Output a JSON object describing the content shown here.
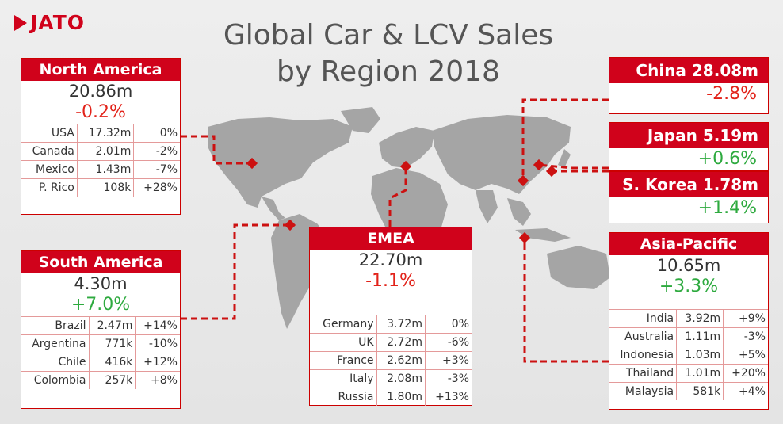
{
  "brand": {
    "name": "JATO",
    "color": "#d0021b"
  },
  "title": {
    "line1": "Global Car & LCV Sales",
    "line2": "by Region 2018"
  },
  "colors": {
    "accent": "#d0021b",
    "positive": "#2eaa3f",
    "negative": "#e2231a",
    "map": "#a5a5a5"
  },
  "north_america": {
    "name": "North America",
    "total": "20.86m",
    "change": "-0.2%",
    "rows": [
      {
        "country": "USA",
        "sales": "17.32m",
        "change": "0%"
      },
      {
        "country": "Canada",
        "sales": "2.01m",
        "change": "-2%"
      },
      {
        "country": "Mexico",
        "sales": "1.43m",
        "change": "-7%"
      },
      {
        "country": "P. Rico",
        "sales": "108k",
        "change": "+28%"
      }
    ]
  },
  "south_america": {
    "name": "South America",
    "total": "4.30m",
    "change": "+7.0%",
    "rows": [
      {
        "country": "Brazil",
        "sales": "2.47m",
        "change": "+14%"
      },
      {
        "country": "Argentina",
        "sales": "771k",
        "change": "-10%"
      },
      {
        "country": "Chile",
        "sales": "416k",
        "change": "+12%"
      },
      {
        "country": "Colombia",
        "sales": "257k",
        "change": "+8%"
      }
    ]
  },
  "emea": {
    "name": "EMEA",
    "total": "22.70m",
    "change": "-1.1%",
    "rows": [
      {
        "country": "Germany",
        "sales": "3.72m",
        "change": "0%"
      },
      {
        "country": "UK",
        "sales": "2.72m",
        "change": "-6%"
      },
      {
        "country": "France",
        "sales": "2.62m",
        "change": "+3%"
      },
      {
        "country": "Italy",
        "sales": "2.08m",
        "change": "-3%"
      },
      {
        "country": "Russia",
        "sales": "1.80m",
        "change": "+13%"
      }
    ]
  },
  "asia_pacific": {
    "name": "Asia-Pacific",
    "total": "10.65m",
    "change": "+3.3%",
    "rows": [
      {
        "country": "India",
        "sales": "3.92m",
        "change": "+9%"
      },
      {
        "country": "Australia",
        "sales": "1.11m",
        "change": "-3%"
      },
      {
        "country": "Indonesia",
        "sales": "1.03m",
        "change": "+5%"
      },
      {
        "country": "Thailand",
        "sales": "1.01m",
        "change": "+20%"
      },
      {
        "country": "Malaysia",
        "sales": "581k",
        "change": "+4%"
      }
    ]
  },
  "china": {
    "header": "China 28.08m",
    "change": "-2.8%"
  },
  "japan": {
    "header": "Japan 5.19m",
    "change": "+0.6%"
  },
  "south_korea": {
    "header": "S. Korea 1.78m",
    "change": "+1.4%"
  }
}
